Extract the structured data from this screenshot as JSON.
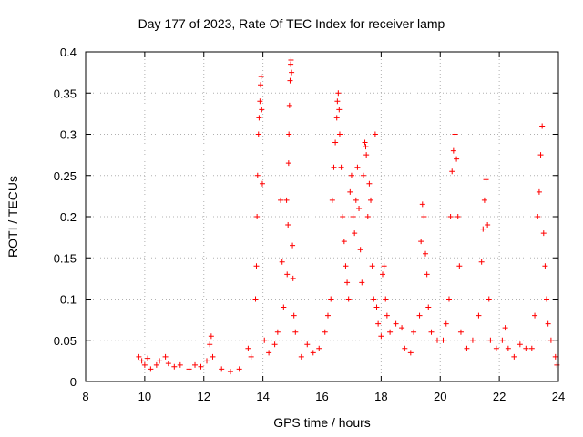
{
  "chart_data": {
    "type": "scatter",
    "title": "Day 177 of 2023, Rate Of TEC Index for receiver lamp",
    "xlabel": "GPS time / hours",
    "ylabel": "ROTI / TECUs",
    "xlim": [
      8,
      24
    ],
    "ylim": [
      0,
      0.4
    ],
    "xticks": [
      8,
      10,
      12,
      14,
      16,
      18,
      20,
      22,
      24
    ],
    "yticks": [
      0,
      0.05,
      0.1,
      0.15,
      0.2,
      0.25,
      0.3,
      0.35,
      0.4
    ],
    "grid": true,
    "marker": "+",
    "color": "#ff0000",
    "series": [
      {
        "name": "ROTI",
        "points": [
          [
            9.8,
            0.03
          ],
          [
            9.9,
            0.025
          ],
          [
            10.0,
            0.02
          ],
          [
            10.1,
            0.028
          ],
          [
            10.2,
            0.015
          ],
          [
            10.4,
            0.02
          ],
          [
            10.5,
            0.025
          ],
          [
            10.7,
            0.03
          ],
          [
            10.8,
            0.022
          ],
          [
            11.0,
            0.018
          ],
          [
            11.2,
            0.02
          ],
          [
            11.5,
            0.015
          ],
          [
            11.7,
            0.02
          ],
          [
            11.9,
            0.018
          ],
          [
            12.1,
            0.025
          ],
          [
            12.2,
            0.045
          ],
          [
            12.25,
            0.055
          ],
          [
            12.3,
            0.03
          ],
          [
            12.6,
            0.015
          ],
          [
            12.9,
            0.012
          ],
          [
            13.2,
            0.015
          ],
          [
            13.5,
            0.04
          ],
          [
            13.6,
            0.03
          ],
          [
            13.75,
            0.1
          ],
          [
            13.78,
            0.14
          ],
          [
            13.8,
            0.2
          ],
          [
            13.82,
            0.25
          ],
          [
            13.85,
            0.3
          ],
          [
            13.87,
            0.32
          ],
          [
            13.9,
            0.34
          ],
          [
            13.92,
            0.36
          ],
          [
            13.94,
            0.37
          ],
          [
            13.96,
            0.33
          ],
          [
            13.98,
            0.24
          ],
          [
            14.05,
            0.05
          ],
          [
            14.2,
            0.035
          ],
          [
            14.4,
            0.045
          ],
          [
            14.5,
            0.06
          ],
          [
            14.6,
            0.22
          ],
          [
            14.65,
            0.145
          ],
          [
            14.7,
            0.09
          ],
          [
            14.8,
            0.22
          ],
          [
            14.82,
            0.13
          ],
          [
            14.85,
            0.19
          ],
          [
            14.87,
            0.265
          ],
          [
            14.88,
            0.3
          ],
          [
            14.9,
            0.335
          ],
          [
            14.92,
            0.365
          ],
          [
            14.94,
            0.385
          ],
          [
            14.95,
            0.39
          ],
          [
            14.97,
            0.375
          ],
          [
            15.0,
            0.165
          ],
          [
            15.02,
            0.125
          ],
          [
            15.05,
            0.08
          ],
          [
            15.1,
            0.06
          ],
          [
            15.3,
            0.03
          ],
          [
            15.5,
            0.045
          ],
          [
            15.7,
            0.035
          ],
          [
            15.9,
            0.04
          ],
          [
            16.1,
            0.06
          ],
          [
            16.2,
            0.08
          ],
          [
            16.3,
            0.1
          ],
          [
            16.35,
            0.22
          ],
          [
            16.4,
            0.26
          ],
          [
            16.45,
            0.29
          ],
          [
            16.5,
            0.32
          ],
          [
            16.52,
            0.34
          ],
          [
            16.55,
            0.35
          ],
          [
            16.58,
            0.33
          ],
          [
            16.6,
            0.3
          ],
          [
            16.65,
            0.26
          ],
          [
            16.7,
            0.2
          ],
          [
            16.75,
            0.17
          ],
          [
            16.8,
            0.14
          ],
          [
            16.85,
            0.12
          ],
          [
            16.9,
            0.1
          ],
          [
            16.95,
            0.23
          ],
          [
            17.0,
            0.25
          ],
          [
            17.05,
            0.2
          ],
          [
            17.1,
            0.18
          ],
          [
            17.15,
            0.22
          ],
          [
            17.2,
            0.26
          ],
          [
            17.25,
            0.21
          ],
          [
            17.3,
            0.16
          ],
          [
            17.35,
            0.12
          ],
          [
            17.4,
            0.25
          ],
          [
            17.45,
            0.29
          ],
          [
            17.48,
            0.285
          ],
          [
            17.5,
            0.275
          ],
          [
            17.55,
            0.2
          ],
          [
            17.6,
            0.24
          ],
          [
            17.65,
            0.22
          ],
          [
            17.7,
            0.14
          ],
          [
            17.75,
            0.1
          ],
          [
            17.8,
            0.3
          ],
          [
            17.85,
            0.09
          ],
          [
            17.9,
            0.07
          ],
          [
            18.0,
            0.055
          ],
          [
            18.05,
            0.13
          ],
          [
            18.1,
            0.14
          ],
          [
            18.15,
            0.1
          ],
          [
            18.2,
            0.08
          ],
          [
            18.3,
            0.06
          ],
          [
            18.5,
            0.07
          ],
          [
            18.7,
            0.065
          ],
          [
            18.8,
            0.04
          ],
          [
            19.0,
            0.035
          ],
          [
            19.1,
            0.06
          ],
          [
            19.3,
            0.08
          ],
          [
            19.35,
            0.17
          ],
          [
            19.4,
            0.215
          ],
          [
            19.45,
            0.2
          ],
          [
            19.5,
            0.155
          ],
          [
            19.55,
            0.13
          ],
          [
            19.6,
            0.09
          ],
          [
            19.7,
            0.06
          ],
          [
            19.9,
            0.05
          ],
          [
            20.1,
            0.05
          ],
          [
            20.2,
            0.07
          ],
          [
            20.3,
            0.1
          ],
          [
            20.35,
            0.2
          ],
          [
            20.4,
            0.255
          ],
          [
            20.45,
            0.28
          ],
          [
            20.5,
            0.3
          ],
          [
            20.55,
            0.27
          ],
          [
            20.6,
            0.2
          ],
          [
            20.65,
            0.14
          ],
          [
            20.7,
            0.06
          ],
          [
            20.9,
            0.04
          ],
          [
            21.1,
            0.05
          ],
          [
            21.3,
            0.08
          ],
          [
            21.4,
            0.145
          ],
          [
            21.45,
            0.185
          ],
          [
            21.5,
            0.22
          ],
          [
            21.55,
            0.245
          ],
          [
            21.6,
            0.19
          ],
          [
            21.65,
            0.1
          ],
          [
            21.7,
            0.05
          ],
          [
            21.9,
            0.04
          ],
          [
            22.1,
            0.05
          ],
          [
            22.2,
            0.065
          ],
          [
            22.3,
            0.04
          ],
          [
            22.5,
            0.03
          ],
          [
            22.7,
            0.045
          ],
          [
            22.9,
            0.04
          ],
          [
            23.1,
            0.04
          ],
          [
            23.2,
            0.08
          ],
          [
            23.3,
            0.2
          ],
          [
            23.35,
            0.23
          ],
          [
            23.4,
            0.275
          ],
          [
            23.45,
            0.31
          ],
          [
            23.5,
            0.18
          ],
          [
            23.55,
            0.14
          ],
          [
            23.6,
            0.1
          ],
          [
            23.65,
            0.07
          ],
          [
            23.75,
            0.05
          ],
          [
            23.9,
            0.03
          ],
          [
            23.95,
            0.02
          ]
        ]
      }
    ]
  }
}
